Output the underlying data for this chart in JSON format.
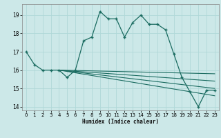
{
  "xlabel": "Humidex (Indice chaleur)",
  "bg_color": "#cce8e8",
  "line_color": "#1a6b60",
  "grid_color": "#b0d8d8",
  "xlim": [
    -0.5,
    23.5
  ],
  "ylim": [
    13.8,
    19.6
  ],
  "yticks": [
    14,
    15,
    16,
    17,
    18,
    19
  ],
  "xticks": [
    0,
    1,
    2,
    3,
    4,
    5,
    6,
    7,
    8,
    9,
    10,
    11,
    12,
    13,
    14,
    15,
    16,
    17,
    18,
    19,
    20,
    21,
    22,
    23
  ],
  "main_line_x": [
    0,
    1,
    2,
    3,
    4,
    5,
    6,
    7,
    8,
    9,
    10,
    11,
    12,
    13,
    14,
    15,
    16,
    17,
    18,
    19,
    20,
    21,
    22,
    23
  ],
  "main_line_y": [
    17.0,
    16.3,
    16.0,
    16.0,
    16.0,
    15.6,
    16.0,
    17.6,
    17.8,
    19.2,
    18.8,
    18.8,
    17.8,
    18.6,
    19.0,
    18.5,
    18.5,
    18.2,
    16.9,
    15.6,
    14.8,
    14.0,
    14.9,
    14.9
  ],
  "flat_lines": [
    {
      "x": [
        4,
        23
      ],
      "y": [
        16.0,
        15.8
      ]
    },
    {
      "x": [
        4,
        23
      ],
      "y": [
        16.0,
        15.4
      ]
    },
    {
      "x": [
        4,
        23
      ],
      "y": [
        16.0,
        15.0
      ]
    },
    {
      "x": [
        4,
        23
      ],
      "y": [
        16.0,
        14.6
      ]
    }
  ]
}
